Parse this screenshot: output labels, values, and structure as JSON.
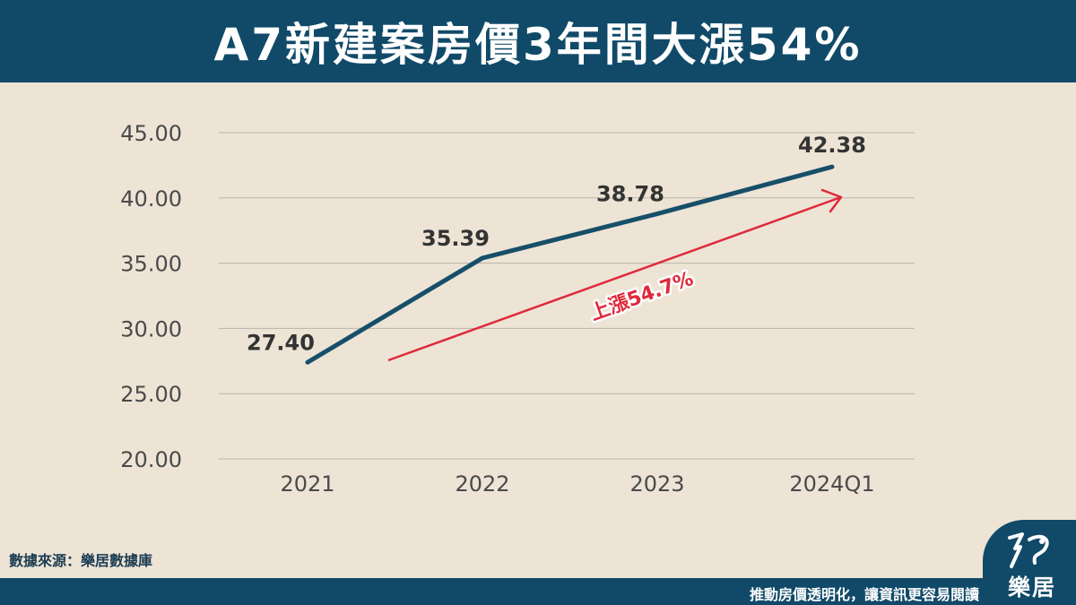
{
  "header": {
    "title": "A7新建案房價3年間大漲54%"
  },
  "chart_data": {
    "type": "line",
    "title": "A7新建案房價3年間大漲54%",
    "categories": [
      "2021",
      "2022",
      "2023",
      "2024Q1"
    ],
    "series": [
      {
        "values": [
          27.4,
          35.39,
          38.78,
          42.38
        ],
        "color": "#174f6a"
      }
    ],
    "data_labels": [
      "27.40",
      "35.39",
      "38.78",
      "42.38"
    ],
    "y_ticks": [
      "20.00",
      "25.00",
      "30.00",
      "35.00",
      "40.00",
      "45.00"
    ],
    "ylim": [
      20,
      45
    ],
    "grid": true,
    "xlabel": "",
    "ylabel": "",
    "annotation": {
      "text": "上漲54.7%",
      "color": "#e0283a"
    }
  },
  "source": "數據來源：樂居數據庫",
  "footer": {
    "slogan": "推動房價透明化，讓資訊更容易閱讀"
  },
  "logo": {
    "text": "樂居"
  }
}
